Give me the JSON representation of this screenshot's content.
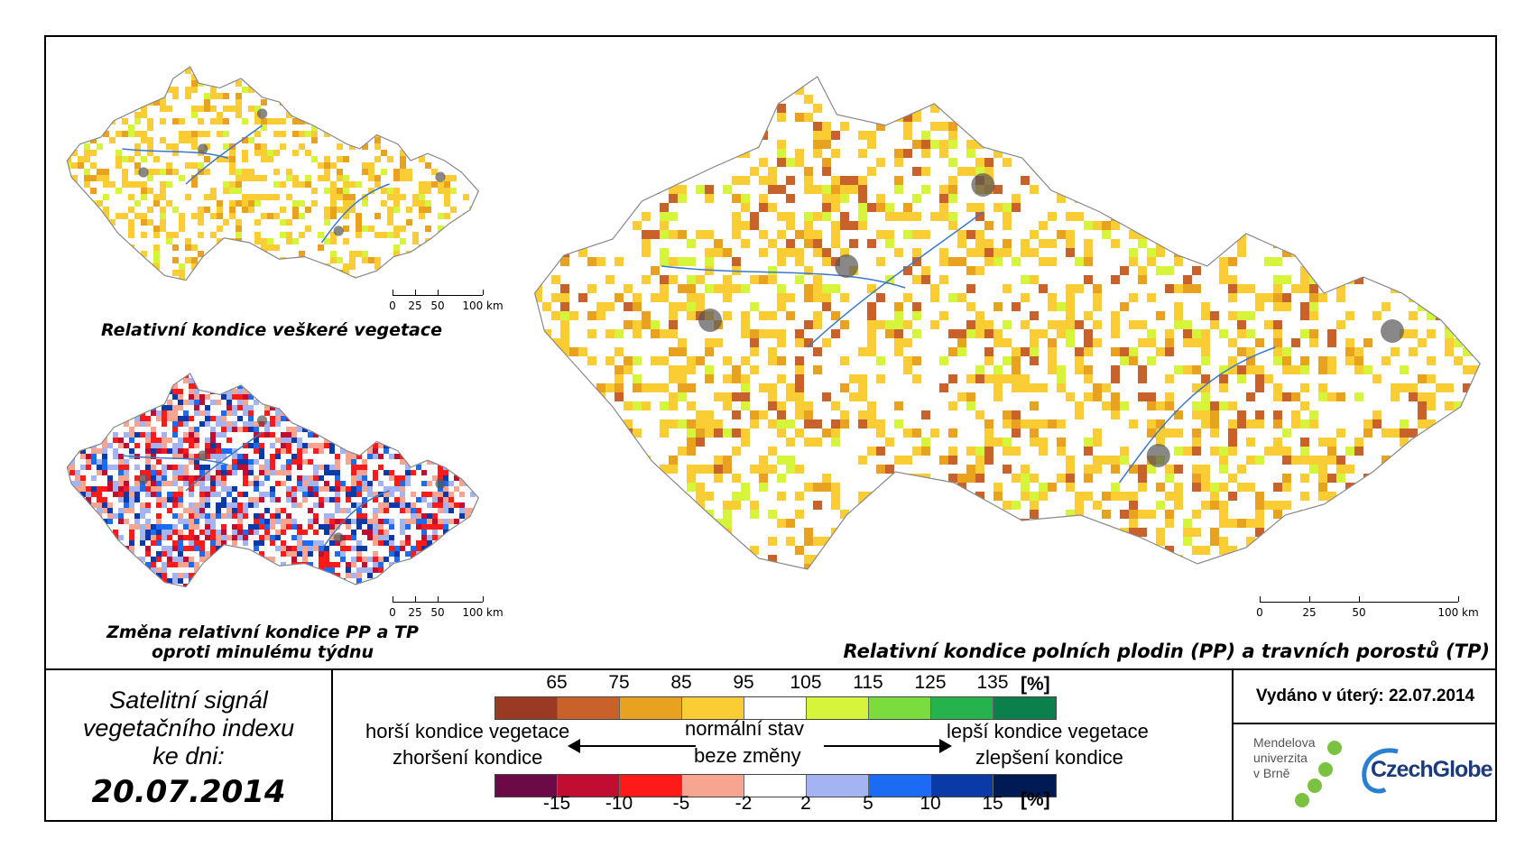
{
  "maps": {
    "all_vegetation": {
      "caption": "Relativní kondice veškeré vegetace"
    },
    "weekly_change": {
      "caption_line1": "Změna relativní kondice PP a TP",
      "caption_line2": "oproti minulému týdnu"
    },
    "main": {
      "caption": "Relativní kondice polních plodin (PP) a travních porostů (TP)"
    },
    "scale_small": [
      "0",
      "25",
      "50",
      "100 km"
    ],
    "scale_main": [
      "0",
      "25",
      "50",
      "100 km"
    ]
  },
  "satellite": {
    "line1": "Satelitní signál",
    "line2": "vegetačního indexu",
    "line3": "ke dni:",
    "date": "20.07.2014"
  },
  "legend": {
    "condition_values": [
      "65",
      "75",
      "85",
      "95",
      "105",
      "115",
      "125",
      "135"
    ],
    "condition_unit": "[%]",
    "condition_colors": [
      "#9b3a24",
      "#c8612a",
      "#e9a21f",
      "#fbcd35",
      "#ffffff",
      "#d6f53a",
      "#7bdc3e",
      "#26b34e",
      "#0b7f4c"
    ],
    "change_values": [
      "-15",
      "-10",
      "-5",
      "-2",
      "2",
      "5",
      "10",
      "15"
    ],
    "change_unit": "[%]",
    "change_colors": [
      "#6b0a46",
      "#c10d31",
      "#ff1a1a",
      "#f7a590",
      "#ffffff",
      "#a4b3f2",
      "#1b6cf3",
      "#0a3aa8",
      "#001a55"
    ],
    "worse_condition": "horší kondice vegetace",
    "normal_state": "normální stav",
    "better_condition": "lepší kondice vegetace",
    "worsening": "zhoršení kondice",
    "no_change": "beze změny",
    "improvement": "zlepšení kondice"
  },
  "issued": "Vydáno v úterý: 22.07.2014",
  "logos": {
    "mendel_line1": "Mendelova",
    "mendel_line2": "univerzita",
    "mendel_line3": "v Brně",
    "czechglobe": "CzechGlobe"
  },
  "colors": {
    "river": "#3a78c8",
    "urban": "#555555",
    "border": "#888888",
    "mendel_dots": "#7cc242"
  }
}
